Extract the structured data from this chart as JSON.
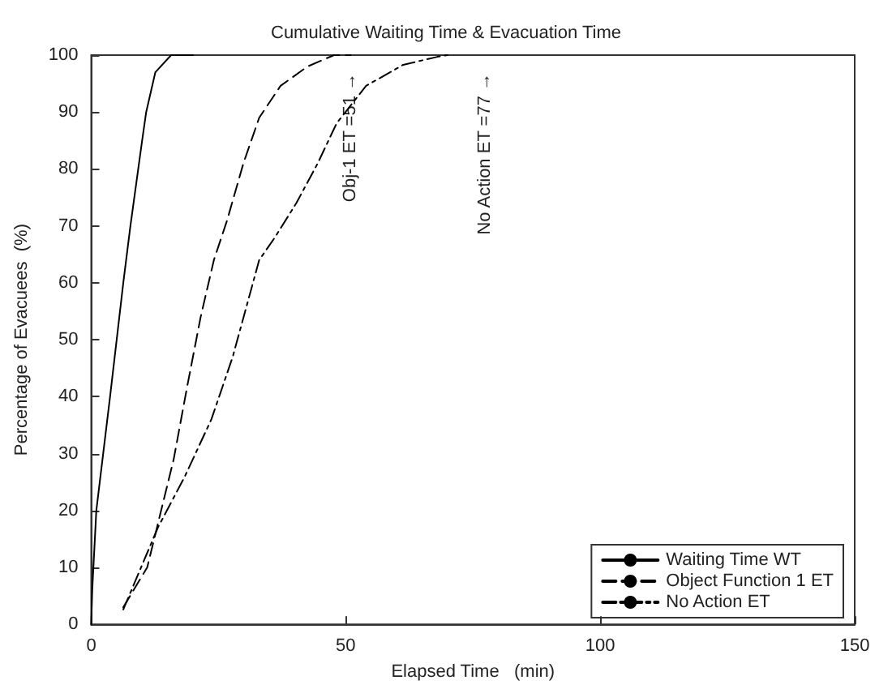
{
  "chart_data": {
    "type": "line",
    "title": "Cumulative Waiting Time & Evacuation Time",
    "xlabel": "Elapsed Time   (min)",
    "ylabel": "Percentage of Evacuees  (%)",
    "xlim": [
      0,
      150
    ],
    "xticks": [
      0,
      50,
      100,
      150
    ],
    "ylim": [
      0,
      100
    ],
    "yticks": [
      0,
      10,
      20,
      30,
      40,
      50,
      60,
      70,
      80,
      90,
      100
    ],
    "grid": false,
    "legend": "bottom right",
    "marker": "none",
    "series": [
      {
        "name": "Waiting Time WT",
        "color": "#000000",
        "line_style": "solid",
        "x": [
          0,
          0.2,
          1,
          3.7,
          6.3,
          7.7,
          10,
          10.8,
          12.6,
          15.7,
          20
        ],
        "values": [
          0,
          6,
          20,
          40,
          60,
          70,
          85,
          90,
          97,
          100,
          100
        ]
      },
      {
        "name": "Object Function 1 ET",
        "color": "#000000",
        "line_style": "dashed",
        "x": [
          6.3,
          11,
          16.2,
          18.9,
          21.5,
          24.1,
          26.7,
          29.9,
          33,
          37.2,
          42.5,
          47.7,
          51
        ],
        "values": [
          3,
          10,
          29,
          42,
          54,
          64,
          71,
          81,
          89,
          94.6,
          98,
          100,
          100
        ]
      },
      {
        "name": "No Action ET",
        "color": "#000000",
        "line_style": "dashdot",
        "x": [
          6.3,
          13.1,
          18.4,
          23.6,
          27.8,
          33,
          36.1,
          40.3,
          44.5,
          48.2,
          54,
          61.3,
          68,
          70
        ],
        "values": [
          2.6,
          17,
          26,
          36,
          47,
          64,
          68,
          74,
          81,
          88,
          94.6,
          98.3,
          99.7,
          100
        ]
      }
    ],
    "annotations": [
      "Obj-1 ET =51 →",
      "No Action ET =77 →"
    ]
  }
}
